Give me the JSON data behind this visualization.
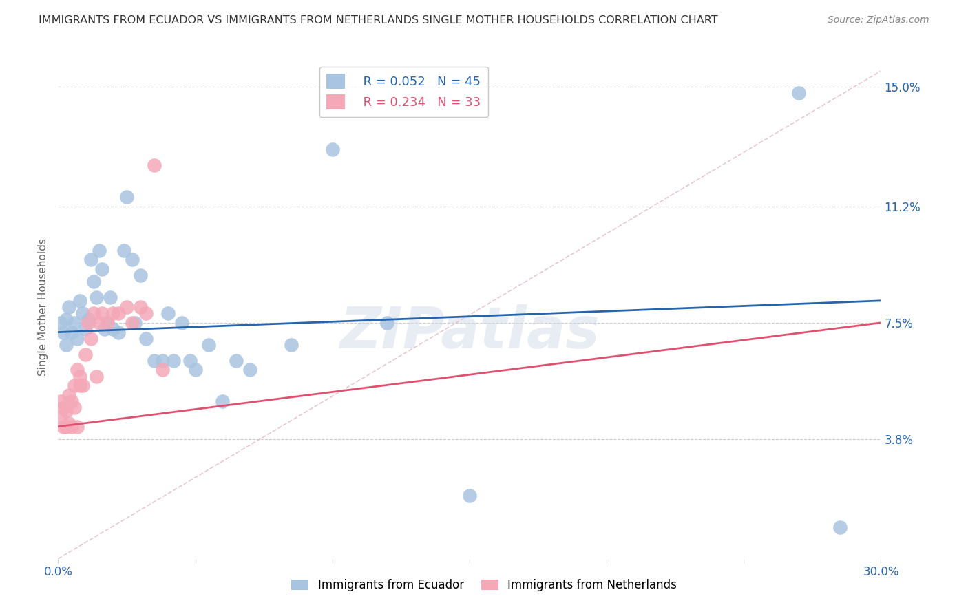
{
  "title": "IMMIGRANTS FROM ECUADOR VS IMMIGRANTS FROM NETHERLANDS SINGLE MOTHER HOUSEHOLDS CORRELATION CHART",
  "source": "Source: ZipAtlas.com",
  "ylabel": "Single Mother Households",
  "xlim": [
    0.0,
    0.3
  ],
  "ylim": [
    0.0,
    0.16
  ],
  "ytick_labels_right": [
    "15.0%",
    "11.2%",
    "7.5%",
    "3.8%"
  ],
  "ytick_positions_right": [
    0.15,
    0.112,
    0.075,
    0.038
  ],
  "ecuador_R": 0.052,
  "ecuador_N": 45,
  "netherlands_R": 0.234,
  "netherlands_N": 33,
  "ecuador_color": "#a8c4e0",
  "netherlands_color": "#f4a8b8",
  "ecuador_line_color": "#2565ae",
  "netherlands_line_color": "#e05070",
  "diagonal_line_color": "#e8c0c8",
  "ecuador_line": [
    0.0,
    0.072,
    0.3,
    0.082
  ],
  "netherlands_line": [
    0.0,
    0.042,
    0.3,
    0.075
  ],
  "ecuador_x": [
    0.001,
    0.002,
    0.003,
    0.003,
    0.004,
    0.005,
    0.006,
    0.007,
    0.008,
    0.009,
    0.01,
    0.011,
    0.012,
    0.013,
    0.014,
    0.015,
    0.016,
    0.017,
    0.018,
    0.019,
    0.02,
    0.022,
    0.024,
    0.025,
    0.027,
    0.028,
    0.03,
    0.032,
    0.035,
    0.038,
    0.04,
    0.042,
    0.045,
    0.048,
    0.05,
    0.055,
    0.06,
    0.065,
    0.07,
    0.085,
    0.1,
    0.12,
    0.15,
    0.27,
    0.285
  ],
  "ecuador_y": [
    0.075,
    0.072,
    0.068,
    0.076,
    0.08,
    0.072,
    0.075,
    0.07,
    0.082,
    0.078,
    0.073,
    0.076,
    0.095,
    0.088,
    0.083,
    0.098,
    0.092,
    0.073,
    0.075,
    0.083,
    0.073,
    0.072,
    0.098,
    0.115,
    0.095,
    0.075,
    0.09,
    0.07,
    0.063,
    0.063,
    0.078,
    0.063,
    0.075,
    0.063,
    0.06,
    0.068,
    0.05,
    0.063,
    0.06,
    0.068,
    0.13,
    0.075,
    0.02,
    0.148,
    0.01
  ],
  "netherlands_x": [
    0.001,
    0.001,
    0.002,
    0.002,
    0.003,
    0.003,
    0.004,
    0.004,
    0.005,
    0.005,
    0.006,
    0.006,
    0.007,
    0.007,
    0.008,
    0.008,
    0.009,
    0.01,
    0.011,
    0.012,
    0.013,
    0.014,
    0.015,
    0.016,
    0.018,
    0.02,
    0.022,
    0.025,
    0.027,
    0.03,
    0.032,
    0.035,
    0.038
  ],
  "netherlands_y": [
    0.045,
    0.05,
    0.042,
    0.048,
    0.042,
    0.047,
    0.043,
    0.052,
    0.042,
    0.05,
    0.048,
    0.055,
    0.042,
    0.06,
    0.055,
    0.058,
    0.055,
    0.065,
    0.075,
    0.07,
    0.078,
    0.058,
    0.075,
    0.078,
    0.075,
    0.078,
    0.078,
    0.08,
    0.075,
    0.08,
    0.078,
    0.125,
    0.06
  ],
  "watermark": "ZIPatlas",
  "background_color": "#ffffff",
  "grid_color": "#cccccc"
}
